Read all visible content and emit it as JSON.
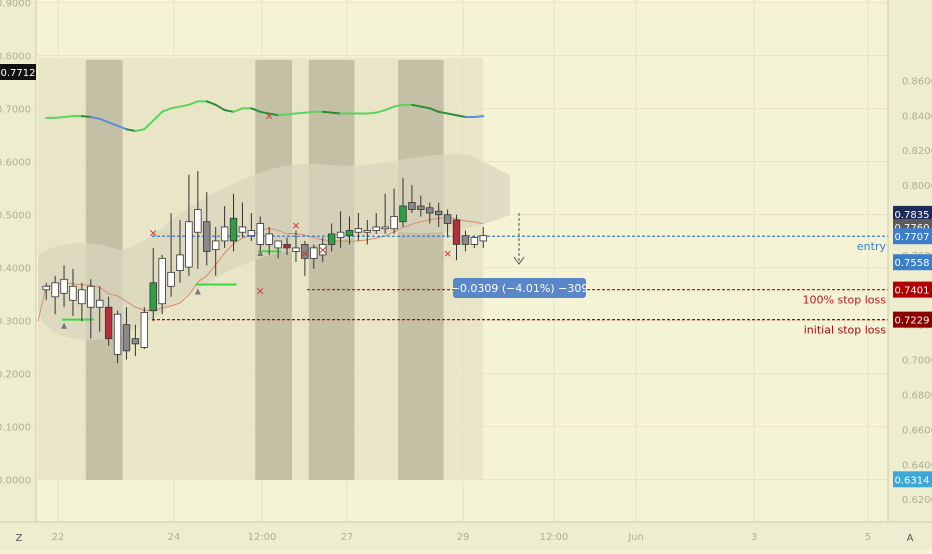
{
  "chart_data": {
    "type": "candlestick",
    "left_axis": {
      "ticks": [
        "0.0000",
        "0.1000",
        "0.2000",
        "0.3000",
        "0.4000",
        "0.5000",
        "0.6000",
        "0.7000",
        "0.8000",
        "0.9000"
      ],
      "range": [
        0,
        0.9
      ],
      "badge": "0.7712"
    },
    "right_axis": {
      "ticks": [
        "0.6200",
        "0.6400",
        "0.6600",
        "0.6800",
        "0.7000",
        "0.7200",
        "0.7400",
        "0.7600",
        "0.7800",
        "0.8000",
        "0.8200",
        "0.8400",
        "0.8600"
      ],
      "range": [
        0.62,
        0.87
      ],
      "badges": [
        {
          "label": "0.7835",
          "value": 0.7835,
          "color": "#1e2a5a"
        },
        {
          "label": "0.7760",
          "value": 0.776,
          "color": "#5b5b5b"
        },
        {
          "label": "0.7707",
          "value": 0.7707,
          "color": "#3d7ec9"
        },
        {
          "label": "0.7558",
          "value": 0.7558,
          "color": "#3d7ec9"
        },
        {
          "label": "0.7401",
          "value": 0.7401,
          "color": "#b00000"
        },
        {
          "label": "0.7229",
          "value": 0.7229,
          "color": "#8a0000"
        },
        {
          "label": "0.6314",
          "value": 0.6314,
          "color": "#3da8d8"
        }
      ]
    },
    "x_axis": {
      "ticks": [
        "22",
        "24",
        "12:00",
        "27",
        "29",
        "12:00",
        "Jun",
        "3",
        "5"
      ]
    },
    "lines": [
      {
        "label": "entry",
        "value": 0.7707,
        "color": "#3d7ec9"
      },
      {
        "label": "100% stop loss",
        "value": 0.7401,
        "color": "#b22222"
      },
      {
        "label": "initial stop loss",
        "value": 0.7229,
        "color": "#a01010"
      }
    ],
    "measure_label": "−0.0309 (−4.01%) −309",
    "corner_left": "Z",
    "corner_right": "A",
    "candles": [
      {
        "o": 0.74,
        "h": 0.744,
        "l": 0.734,
        "c": 0.742
      },
      {
        "o": 0.736,
        "h": 0.748,
        "l": 0.726,
        "c": 0.744
      },
      {
        "o": 0.738,
        "h": 0.754,
        "l": 0.73,
        "c": 0.746
      },
      {
        "o": 0.734,
        "h": 0.752,
        "l": 0.725,
        "c": 0.742
      },
      {
        "o": 0.732,
        "h": 0.744,
        "l": 0.722,
        "c": 0.74
      },
      {
        "o": 0.73,
        "h": 0.746,
        "l": 0.712,
        "c": 0.742
      },
      {
        "o": 0.73,
        "h": 0.742,
        "l": 0.716,
        "c": 0.734
      },
      {
        "o": 0.73,
        "h": 0.736,
        "l": 0.708,
        "c": 0.712
      },
      {
        "o": 0.703,
        "h": 0.728,
        "l": 0.698,
        "c": 0.726
      },
      {
        "o": 0.72,
        "h": 0.73,
        "l": 0.7,
        "c": 0.705
      },
      {
        "o": 0.712,
        "h": 0.72,
        "l": 0.702,
        "c": 0.709
      },
      {
        "o": 0.707,
        "h": 0.73,
        "l": 0.706,
        "c": 0.727
      },
      {
        "o": 0.728,
        "h": 0.764,
        "l": 0.722,
        "c": 0.744
      },
      {
        "o": 0.732,
        "h": 0.76,
        "l": 0.726,
        "c": 0.758
      },
      {
        "o": 0.742,
        "h": 0.784,
        "l": 0.736,
        "c": 0.75
      },
      {
        "o": 0.751,
        "h": 0.78,
        "l": 0.744,
        "c": 0.76
      },
      {
        "o": 0.753,
        "h": 0.806,
        "l": 0.748,
        "c": 0.779
      },
      {
        "o": 0.773,
        "h": 0.808,
        "l": 0.752,
        "c": 0.786
      },
      {
        "o": 0.779,
        "h": 0.796,
        "l": 0.754,
        "c": 0.762
      },
      {
        "o": 0.763,
        "h": 0.776,
        "l": 0.748,
        "c": 0.768
      },
      {
        "o": 0.768,
        "h": 0.788,
        "l": 0.764,
        "c": 0.776
      },
      {
        "o": 0.768,
        "h": 0.795,
        "l": 0.762,
        "c": 0.781
      },
      {
        "o": 0.773,
        "h": 0.79,
        "l": 0.77,
        "c": 0.776
      },
      {
        "o": 0.771,
        "h": 0.784,
        "l": 0.768,
        "c": 0.774
      },
      {
        "o": 0.766,
        "h": 0.782,
        "l": 0.762,
        "c": 0.778
      },
      {
        "o": 0.766,
        "h": 0.776,
        "l": 0.76,
        "c": 0.772
      },
      {
        "o": 0.764,
        "h": 0.768,
        "l": 0.758,
        "c": 0.768
      },
      {
        "o": 0.764,
        "h": 0.77,
        "l": 0.76,
        "c": 0.766
      },
      {
        "o": 0.762,
        "h": 0.774,
        "l": 0.756,
        "c": 0.764
      },
      {
        "o": 0.766,
        "h": 0.768,
        "l": 0.748,
        "c": 0.758
      },
      {
        "o": 0.758,
        "h": 0.766,
        "l": 0.752,
        "c": 0.764
      },
      {
        "o": 0.76,
        "h": 0.77,
        "l": 0.756,
        "c": 0.766
      },
      {
        "o": 0.766,
        "h": 0.778,
        "l": 0.762,
        "c": 0.772
      },
      {
        "o": 0.77,
        "h": 0.785,
        "l": 0.764,
        "c": 0.773
      },
      {
        "o": 0.771,
        "h": 0.782,
        "l": 0.766,
        "c": 0.774
      },
      {
        "o": 0.773,
        "h": 0.784,
        "l": 0.768,
        "c": 0.775
      },
      {
        "o": 0.773,
        "h": 0.78,
        "l": 0.766,
        "c": 0.774
      },
      {
        "o": 0.774,
        "h": 0.784,
        "l": 0.772,
        "c": 0.776
      },
      {
        "o": 0.775,
        "h": 0.795,
        "l": 0.772,
        "c": 0.776
      },
      {
        "o": 0.775,
        "h": 0.798,
        "l": 0.772,
        "c": 0.782
      },
      {
        "o": 0.779,
        "h": 0.804,
        "l": 0.776,
        "c": 0.788
      },
      {
        "o": 0.79,
        "h": 0.8,
        "l": 0.784,
        "c": 0.786
      },
      {
        "o": 0.788,
        "h": 0.794,
        "l": 0.782,
        "c": 0.786
      },
      {
        "o": 0.787,
        "h": 0.79,
        "l": 0.778,
        "c": 0.784
      },
      {
        "o": 0.785,
        "h": 0.79,
        "l": 0.776,
        "c": 0.783
      },
      {
        "o": 0.783,
        "h": 0.786,
        "l": 0.77,
        "c": 0.778
      },
      {
        "o": 0.78,
        "h": 0.783,
        "l": 0.757,
        "c": 0.766
      },
      {
        "o": 0.771,
        "h": 0.774,
        "l": 0.762,
        "c": 0.766
      },
      {
        "o": 0.766,
        "h": 0.771,
        "l": 0.764,
        "c": 0.77
      },
      {
        "o": 0.768,
        "h": 0.776,
        "l": 0.764,
        "c": 0.771
      }
    ],
    "upper_band": [
      0.8385,
      0.8385,
      0.839,
      0.8395,
      0.8395,
      0.839,
      0.838,
      0.836,
      0.834,
      0.832,
      0.831,
      0.832,
      0.837,
      0.842,
      0.844,
      0.845,
      0.846,
      0.848,
      0.848,
      0.846,
      0.843,
      0.842,
      0.844,
      0.844,
      0.842,
      0.841,
      0.84,
      0.8405,
      0.841,
      0.8415,
      0.842,
      0.842,
      0.8415,
      0.841,
      0.841,
      0.841,
      0.841,
      0.8415,
      0.843,
      0.845,
      0.846,
      0.846,
      0.845,
      0.844,
      0.842,
      0.841,
      0.84,
      0.839,
      0.839,
      0.8395
    ],
    "markers_x": [
      {
        "i": 12,
        "v": 0.7728
      },
      {
        "i": 24,
        "v": 0.7395
      },
      {
        "i": 25,
        "v": 0.84
      },
      {
        "i": 28,
        "v": 0.777
      },
      {
        "i": 29,
        "v": 0.761
      },
      {
        "i": 31,
        "v": 0.763
      },
      {
        "i": 45,
        "v": 0.761
      }
    ],
    "markers_tri": [
      {
        "i": 2,
        "v": 0.7194
      },
      {
        "i": 17,
        "v": 0.739
      },
      {
        "i": 24,
        "v": 0.761
      }
    ],
    "green_levels": [
      {
        "i0": 2,
        "i1": 5,
        "v": 0.7229
      },
      {
        "i0": 17,
        "i1": 21,
        "v": 0.743
      },
      {
        "i0": 24,
        "i1": 26,
        "v": 0.762
      }
    ],
    "shaded_ranges": [
      [
        5,
        8
      ],
      [
        24,
        27
      ],
      [
        30,
        34
      ],
      [
        40,
        44
      ]
    ]
  }
}
